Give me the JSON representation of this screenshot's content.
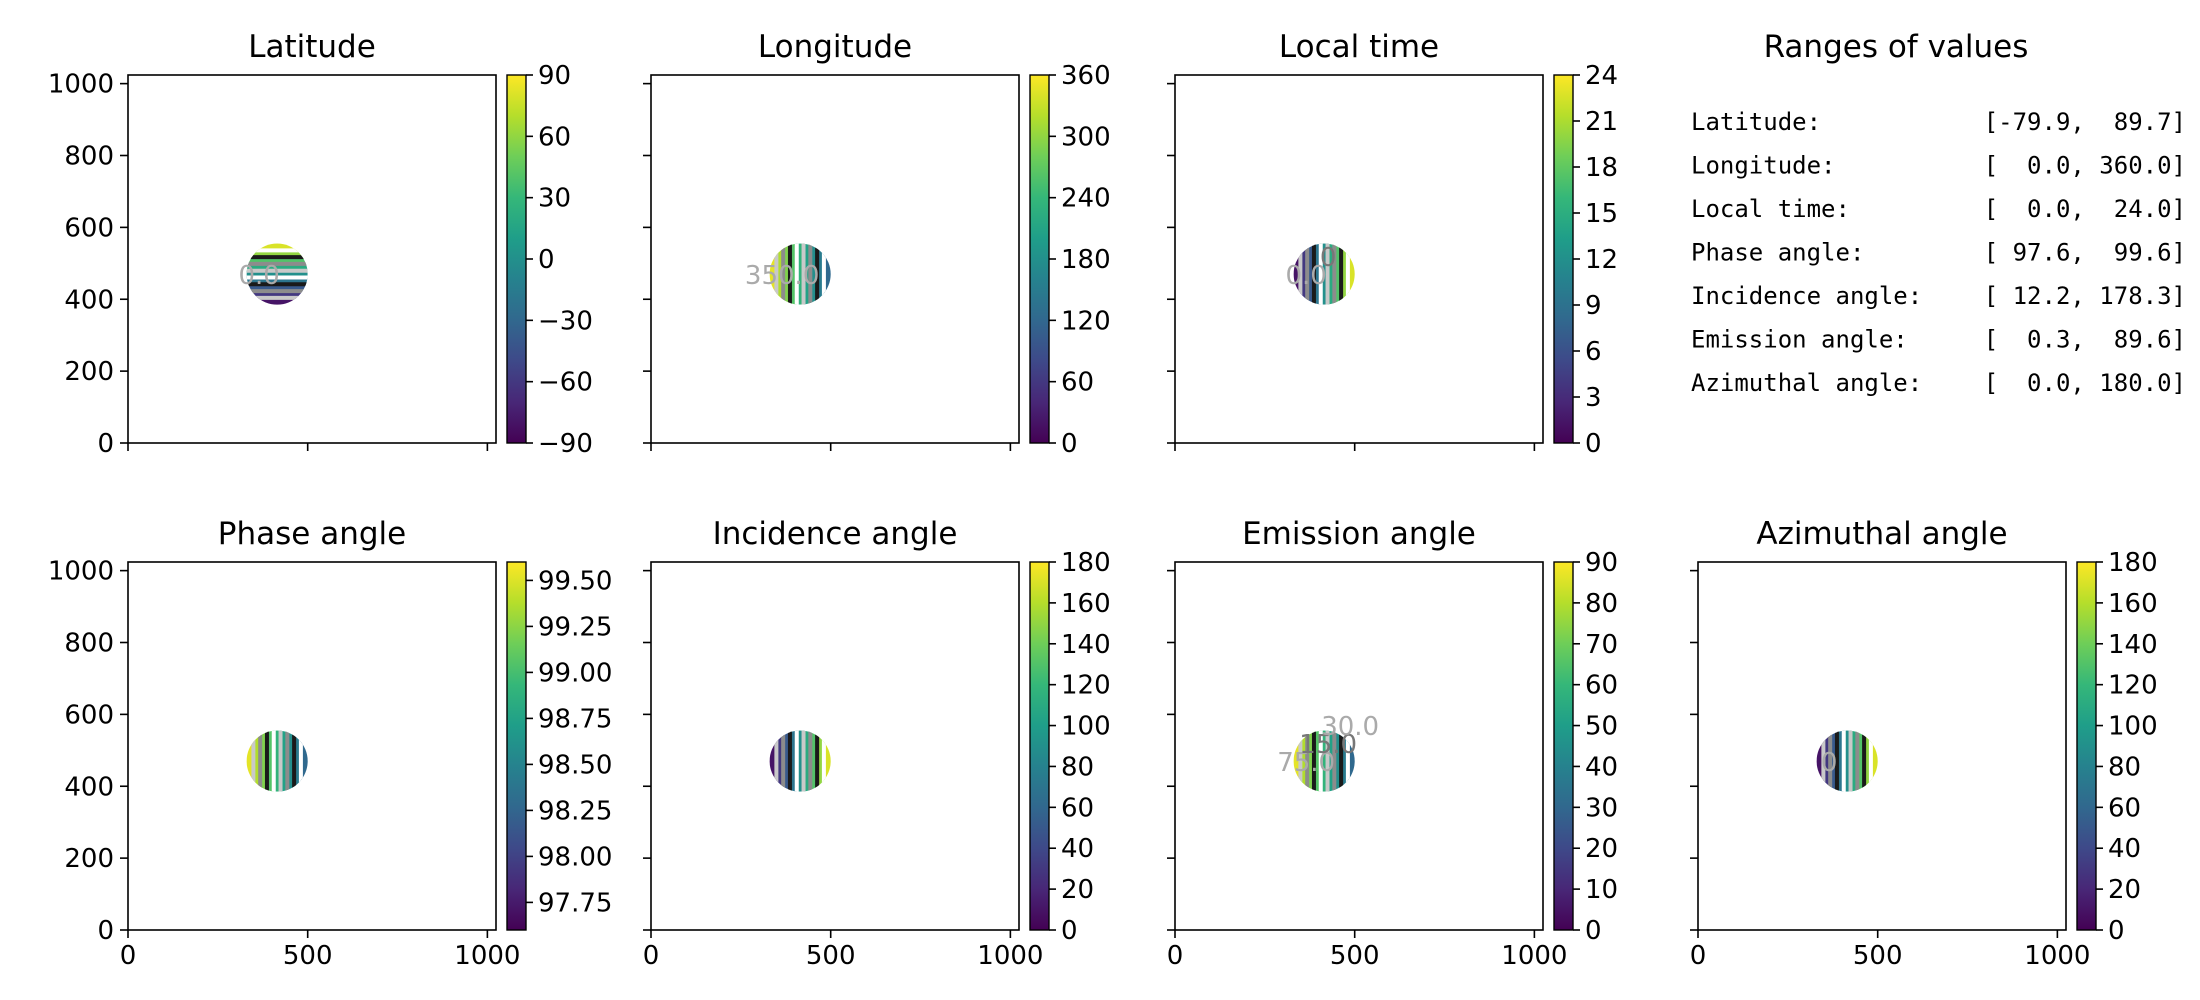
{
  "colormap": [
    "#440154",
    "#482777",
    "#3e4989",
    "#31688e",
    "#26828e",
    "#1f9e89",
    "#35b779",
    "#6ece58",
    "#b5de2b",
    "#fde725"
  ],
  "chart_data": [
    {
      "type": "heatmap",
      "title": "Latitude",
      "xlim": [
        0,
        1024
      ],
      "ylim": [
        0,
        1024
      ],
      "x_ticks": [
        "0",
        "500",
        "1000"
      ],
      "y_ticks": [
        "0",
        "200",
        "400",
        "600",
        "800",
        "1000"
      ],
      "colorbar": {
        "range": [
          -90,
          90
        ],
        "ticks": [
          90,
          60,
          30,
          0,
          -30,
          -60,
          -90
        ],
        "tick_labels": [
          "90",
          "60",
          "30",
          "0",
          "−30",
          "−60",
          "−90"
        ]
      },
      "disk": {
        "center": [
          415,
          470
        ],
        "radius": 85
      },
      "contour_labels": [
        "0.0"
      ]
    },
    {
      "type": "heatmap",
      "title": "Longitude",
      "xlim": [
        0,
        1024
      ],
      "ylim": [
        0,
        1024
      ],
      "x_ticks": [
        "0",
        "500",
        "1000"
      ],
      "y_ticks": [],
      "colorbar": {
        "range": [
          0,
          360
        ],
        "ticks": [
          360,
          300,
          240,
          180,
          120,
          60,
          0
        ],
        "tick_labels": [
          "360",
          "300",
          "240",
          "180",
          "120",
          "60",
          "0"
        ]
      },
      "disk": {
        "center": [
          415,
          470
        ],
        "radius": 85
      },
      "contour_labels": [
        "350.0"
      ]
    },
    {
      "type": "heatmap",
      "title": "Local time",
      "xlim": [
        0,
        1024
      ],
      "ylim": [
        0,
        1024
      ],
      "x_ticks": [
        "0",
        "500",
        "1000"
      ],
      "y_ticks": [],
      "colorbar": {
        "range": [
          0,
          24
        ],
        "ticks": [
          24,
          21,
          18,
          15,
          12,
          9,
          6,
          3,
          0
        ],
        "tick_labels": [
          "24",
          "21",
          "18",
          "15",
          "12",
          "9",
          "6",
          "3",
          "0"
        ]
      },
      "disk": {
        "center": [
          415,
          470
        ],
        "radius": 85
      },
      "contour_labels": [
        "0.0",
        "0"
      ]
    },
    {
      "type": "heatmap",
      "title": "Phase angle",
      "xlim": [
        0,
        1024
      ],
      "ylim": [
        0,
        1024
      ],
      "x_ticks": [
        "0",
        "500",
        "1000"
      ],
      "y_ticks": [
        "0",
        "200",
        "400",
        "600",
        "800",
        "1000"
      ],
      "colorbar": {
        "range": [
          97.6,
          99.6
        ],
        "ticks": [
          99.5,
          99.25,
          99.0,
          98.75,
          98.5,
          98.25,
          98.0,
          97.75
        ],
        "tick_labels": [
          "99.50",
          "99.25",
          "99.00",
          "98.75",
          "98.50",
          "98.25",
          "98.00",
          "97.75"
        ]
      },
      "disk": {
        "center": [
          415,
          470
        ],
        "radius": 85
      },
      "contour_labels": []
    },
    {
      "type": "heatmap",
      "title": "Incidence angle",
      "xlim": [
        0,
        1024
      ],
      "ylim": [
        0,
        1024
      ],
      "x_ticks": [
        "0",
        "500",
        "1000"
      ],
      "y_ticks": [],
      "colorbar": {
        "range": [
          0,
          180
        ],
        "ticks": [
          180,
          160,
          140,
          120,
          100,
          80,
          60,
          40,
          20,
          0
        ],
        "tick_labels": [
          "180",
          "160",
          "140",
          "120",
          "100",
          "80",
          "60",
          "40",
          "20",
          "0"
        ]
      },
      "disk": {
        "center": [
          415,
          470
        ],
        "radius": 85
      },
      "contour_labels": []
    },
    {
      "type": "heatmap",
      "title": "Emission angle",
      "xlim": [
        0,
        1024
      ],
      "ylim": [
        0,
        1024
      ],
      "x_ticks": [
        "0",
        "500",
        "1000"
      ],
      "y_ticks": [],
      "colorbar": {
        "range": [
          0,
          90
        ],
        "ticks": [
          90,
          80,
          70,
          60,
          50,
          40,
          30,
          20,
          10,
          0
        ],
        "tick_labels": [
          "90",
          "80",
          "70",
          "60",
          "50",
          "40",
          "30",
          "20",
          "10",
          "0"
        ]
      },
      "disk": {
        "center": [
          415,
          470
        ],
        "radius": 85
      },
      "contour_labels": [
        "75.0",
        "15.0",
        "30.0"
      ]
    },
    {
      "type": "heatmap",
      "title": "Azimuthal angle",
      "xlim": [
        0,
        1024
      ],
      "ylim": [
        0,
        1024
      ],
      "x_ticks": [
        "0",
        "500",
        "1000"
      ],
      "y_ticks": [],
      "colorbar": {
        "range": [
          0,
          180
        ],
        "ticks": [
          180,
          160,
          140,
          120,
          100,
          80,
          60,
          40,
          20,
          0
        ],
        "tick_labels": [
          "180",
          "160",
          "140",
          "120",
          "100",
          "80",
          "60",
          "40",
          "20",
          "0"
        ]
      },
      "disk": {
        "center": [
          415,
          470
        ],
        "radius": 85
      },
      "contour_labels": [
        "0"
      ]
    },
    {
      "type": "table",
      "title": "Ranges of values",
      "rows": [
        {
          "label": "Latitude:",
          "range": "[-79.9,  89.7]"
        },
        {
          "label": "Longitude:",
          "range": "[  0.0, 360.0]"
        },
        {
          "label": "Local time:",
          "range": "[  0.0,  24.0]"
        },
        {
          "label": "Phase angle:",
          "range": "[ 97.6,  99.6]"
        },
        {
          "label": "Incidence angle:",
          "range": "[ 12.2, 178.3]"
        },
        {
          "label": "Emission angle:",
          "range": "[  0.3,  89.6]"
        },
        {
          "label": "Azimuthal angle:",
          "range": "[  0.0, 180.0]"
        }
      ]
    }
  ]
}
